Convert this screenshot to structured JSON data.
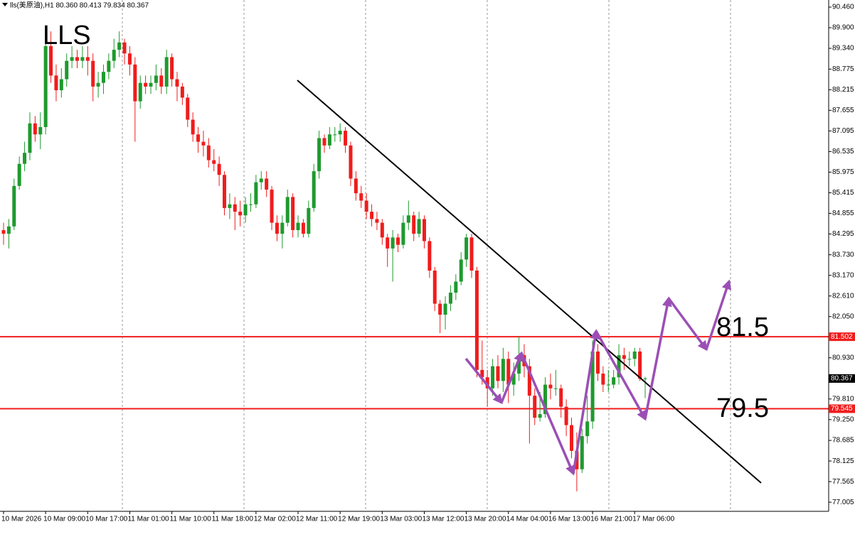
{
  "chart_data": {
    "type": "candlestick",
    "title": "lls(美原油),H1 80.360 80.413 79.834 80.367",
    "annotations": [
      "LLS",
      "81.5",
      "79.5"
    ],
    "up_color": "#1e9a2e",
    "down_color": "#f01c1c",
    "ylim": [
      76.757,
      90.653
    ],
    "yticks": [
      {
        "value": 90.46,
        "label": "90.460"
      },
      {
        "value": 89.9,
        "label": "89.900"
      },
      {
        "value": 89.34,
        "label": "89.340"
      },
      {
        "value": 88.775,
        "label": "88.775"
      },
      {
        "value": 88.215,
        "label": "88.215"
      },
      {
        "value": 87.655,
        "label": "87.655"
      },
      {
        "value": 87.095,
        "label": "87.095"
      },
      {
        "value": 86.535,
        "label": "86.535"
      },
      {
        "value": 85.975,
        "label": "85.975"
      },
      {
        "value": 85.415,
        "label": "85.415"
      },
      {
        "value": 84.855,
        "label": "84.855"
      },
      {
        "value": 84.295,
        "label": "84.295"
      },
      {
        "value": 83.73,
        "label": "83.730"
      },
      {
        "value": 83.17,
        "label": "83.170"
      },
      {
        "value": 82.61,
        "label": "82.610"
      },
      {
        "value": 82.05,
        "label": "82.050"
      },
      {
        "value": 80.93,
        "label": "80.930"
      },
      {
        "value": 79.81,
        "label": "79.810"
      },
      {
        "value": 79.25,
        "label": "79.250"
      },
      {
        "value": 78.685,
        "label": "78.685"
      },
      {
        "value": 78.125,
        "label": "78.125"
      },
      {
        "value": 77.565,
        "label": "77.565"
      },
      {
        "value": 77.005,
        "label": "77.005"
      }
    ],
    "levels": [
      {
        "value": 81.502,
        "label": "81.502",
        "color": "#f01c1c"
      },
      {
        "value": 79.545,
        "label": "79.545",
        "color": "#f01c1c"
      }
    ],
    "last_price": {
      "value": 80.367,
      "label": "80.367"
    },
    "categories": [
      "10 Mar 2026",
      null,
      null,
      null,
      null,
      null,
      null,
      null,
      "10 Mar 09:00",
      null,
      null,
      null,
      null,
      null,
      null,
      null,
      "10 Mar 17:00",
      null,
      null,
      null,
      null,
      null,
      null,
      null,
      "11 Mar 01:00",
      null,
      null,
      null,
      null,
      null,
      null,
      null,
      "11 Mar 10:00",
      null,
      null,
      null,
      null,
      null,
      null,
      null,
      "11 Mar 18:00",
      null,
      null,
      null,
      null,
      null,
      null,
      null,
      "12 Mar 02:00",
      null,
      null,
      null,
      null,
      null,
      null,
      null,
      "12 Mar 11:00",
      null,
      null,
      null,
      null,
      null,
      null,
      null,
      "12 Mar 19:00",
      null,
      null,
      null,
      null,
      null,
      null,
      null,
      "13 Mar 03:00",
      null,
      null,
      null,
      null,
      null,
      null,
      null,
      "13 Mar 12:00",
      null,
      null,
      null,
      null,
      null,
      null,
      null,
      "13 Mar 20:00",
      null,
      null,
      null,
      null,
      null,
      null,
      null,
      "14 Mar 04:00",
      null,
      null,
      null,
      null,
      null,
      null,
      null,
      "16 Mar 13:00",
      null,
      null,
      null,
      null,
      null,
      null,
      null,
      "16 Mar 21:00",
      null,
      null,
      null,
      null,
      null,
      null,
      null,
      "17 Mar 06:00",
      null,
      null
    ],
    "ohlc": [
      [
        84.4,
        84.6,
        84.0,
        84.3
      ],
      [
        84.3,
        84.7,
        83.9,
        84.5
      ],
      [
        84.5,
        85.8,
        84.4,
        85.6
      ],
      [
        85.6,
        86.4,
        85.5,
        86.2
      ],
      [
        86.2,
        86.8,
        86.0,
        86.5
      ],
      [
        86.5,
        87.6,
        86.3,
        87.3
      ],
      [
        87.3,
        87.5,
        86.8,
        87.0
      ],
      [
        87.0,
        87.6,
        86.6,
        87.2
      ],
      [
        87.2,
        89.7,
        87.0,
        89.4
      ],
      [
        89.4,
        89.8,
        88.4,
        88.6
      ],
      [
        88.6,
        88.9,
        87.9,
        88.2
      ],
      [
        88.2,
        88.8,
        88.0,
        88.5
      ],
      [
        88.5,
        89.2,
        88.3,
        89.0
      ],
      [
        89.0,
        89.4,
        88.8,
        89.1
      ],
      [
        89.1,
        89.3,
        88.8,
        89.0
      ],
      [
        89.0,
        89.4,
        88.8,
        89.1
      ],
      [
        89.1,
        89.4,
        88.6,
        89.0
      ],
      [
        89.0,
        89.2,
        87.9,
        88.3
      ],
      [
        88.3,
        88.7,
        88.0,
        88.4
      ],
      [
        88.4,
        88.9,
        88.1,
        88.7
      ],
      [
        88.7,
        89.2,
        88.5,
        89.0
      ],
      [
        89.0,
        89.6,
        88.8,
        89.3
      ],
      [
        89.3,
        89.8,
        89.1,
        89.5
      ],
      [
        89.5,
        89.6,
        88.9,
        89.2
      ],
      [
        89.2,
        89.4,
        88.6,
        88.9
      ],
      [
        88.9,
        89.1,
        86.8,
        87.9
      ],
      [
        87.9,
        88.6,
        87.7,
        88.4
      ],
      [
        88.4,
        88.6,
        88.1,
        88.3
      ],
      [
        88.3,
        88.6,
        88.1,
        88.4
      ],
      [
        88.4,
        88.9,
        88.2,
        88.6
      ],
      [
        88.6,
        88.8,
        88.1,
        88.3
      ],
      [
        88.3,
        89.3,
        88.1,
        89.1
      ],
      [
        89.1,
        89.2,
        88.3,
        88.5
      ],
      [
        88.5,
        88.7,
        87.9,
        88.3
      ],
      [
        88.3,
        88.4,
        87.8,
        88.0
      ],
      [
        88.0,
        88.1,
        87.2,
        87.4
      ],
      [
        87.4,
        87.6,
        86.8,
        87.0
      ],
      [
        87.0,
        87.2,
        86.5,
        86.8
      ],
      [
        86.8,
        87.1,
        86.4,
        86.7
      ],
      [
        86.7,
        86.9,
        86.1,
        86.3
      ],
      [
        86.3,
        86.6,
        86.0,
        86.2
      ],
      [
        86.2,
        86.4,
        85.6,
        85.9
      ],
      [
        85.9,
        86.0,
        84.8,
        85.0
      ],
      [
        85.0,
        85.4,
        84.7,
        85.1
      ],
      [
        85.1,
        85.3,
        84.4,
        84.9
      ],
      [
        84.9,
        85.2,
        84.5,
        84.8
      ],
      [
        84.8,
        85.3,
        84.6,
        85.1
      ],
      [
        85.1,
        85.4,
        84.9,
        85.1
      ],
      [
        85.1,
        85.9,
        85.0,
        85.7
      ],
      [
        85.7,
        86.0,
        85.5,
        85.8
      ],
      [
        85.8,
        86.0,
        85.3,
        85.5
      ],
      [
        85.5,
        85.6,
        84.4,
        84.6
      ],
      [
        84.6,
        84.8,
        84.1,
        84.3
      ],
      [
        84.3,
        84.8,
        83.9,
        84.6
      ],
      [
        84.6,
        85.5,
        84.5,
        85.3
      ],
      [
        85.3,
        85.4,
        84.2,
        84.4
      ],
      [
        84.4,
        84.8,
        84.2,
        84.6
      ],
      [
        84.6,
        84.7,
        84.2,
        84.3
      ],
      [
        84.3,
        85.2,
        84.2,
        85.0
      ],
      [
        85.0,
        86.2,
        84.9,
        86.0
      ],
      [
        86.0,
        87.1,
        85.8,
        86.9
      ],
      [
        86.9,
        87.0,
        86.5,
        86.7
      ],
      [
        86.7,
        87.2,
        86.6,
        87.0
      ],
      [
        87.0,
        87.2,
        86.8,
        87.0
      ],
      [
        87.0,
        87.3,
        86.8,
        87.1
      ],
      [
        87.1,
        87.2,
        86.5,
        86.7
      ],
      [
        86.7,
        86.8,
        85.6,
        85.8
      ],
      [
        85.8,
        86.0,
        85.2,
        85.4
      ],
      [
        85.4,
        85.6,
        85.0,
        85.2
      ],
      [
        85.2,
        85.4,
        84.7,
        84.9
      ],
      [
        84.9,
        85.1,
        84.5,
        84.7
      ],
      [
        84.7,
        84.9,
        84.4,
        84.6
      ],
      [
        84.6,
        84.7,
        84.0,
        84.2
      ],
      [
        84.2,
        84.3,
        83.4,
        83.9
      ],
      [
        83.9,
        84.4,
        83.0,
        84.2
      ],
      [
        84.2,
        84.3,
        83.8,
        84.0
      ],
      [
        84.0,
        84.8,
        83.9,
        84.6
      ],
      [
        84.6,
        85.2,
        84.4,
        84.8
      ],
      [
        84.8,
        84.9,
        84.1,
        84.3
      ],
      [
        84.3,
        84.9,
        84.2,
        84.7
      ],
      [
        84.7,
        84.8,
        83.9,
        84.1
      ],
      [
        84.1,
        84.2,
        83.1,
        83.3
      ],
      [
        83.3,
        83.4,
        82.2,
        82.4
      ],
      [
        82.4,
        82.5,
        81.6,
        82.1
      ],
      [
        82.1,
        82.6,
        81.7,
        82.4
      ],
      [
        82.4,
        82.9,
        82.2,
        82.7
      ],
      [
        82.7,
        83.2,
        82.5,
        83.0
      ],
      [
        83.0,
        83.8,
        82.9,
        83.6
      ],
      [
        83.6,
        84.3,
        83.4,
        84.2
      ],
      [
        84.2,
        84.3,
        83.1,
        83.3
      ],
      [
        83.3,
        83.4,
        80.4,
        80.6
      ],
      [
        80.6,
        81.4,
        80.2,
        80.4
      ],
      [
        80.4,
        80.6,
        79.6,
        80.1
      ],
      [
        80.1,
        80.9,
        79.9,
        80.7
      ],
      [
        80.7,
        81.0,
        80.1,
        80.3
      ],
      [
        80.3,
        81.2,
        80.0,
        80.9
      ],
      [
        80.9,
        81.1,
        79.7,
        80.2
      ],
      [
        80.2,
        80.8,
        79.9,
        80.5
      ],
      [
        80.5,
        81.5,
        80.3,
        81.0
      ],
      [
        81.0,
        81.3,
        80.4,
        80.7
      ],
      [
        80.7,
        80.9,
        78.6,
        79.9
      ],
      [
        79.9,
        80.1,
        79.1,
        79.3
      ],
      [
        79.3,
        80.0,
        79.2,
        79.4
      ],
      [
        79.4,
        80.4,
        79.3,
        80.2
      ],
      [
        80.2,
        80.5,
        79.8,
        80.1
      ],
      [
        80.1,
        80.6,
        79.9,
        80.1
      ],
      [
        80.1,
        80.2,
        79.3,
        79.6
      ],
      [
        79.6,
        79.8,
        78.8,
        79.1
      ],
      [
        79.1,
        79.3,
        78.2,
        78.4
      ],
      [
        78.4,
        78.9,
        77.3,
        77.9
      ],
      [
        77.9,
        79.0,
        77.8,
        78.8
      ],
      [
        78.8,
        79.9,
        78.6,
        79.2
      ],
      [
        79.2,
        81.4,
        79.0,
        81.1
      ],
      [
        81.1,
        81.3,
        80.3,
        80.5
      ],
      [
        80.5,
        80.7,
        80.0,
        80.2
      ],
      [
        80.2,
        80.6,
        80.0,
        80.2
      ],
      [
        80.2,
        80.6,
        80.1,
        80.4
      ],
      [
        80.4,
        81.3,
        80.2,
        81.0
      ],
      [
        81.0,
        81.2,
        80.6,
        80.9
      ],
      [
        80.9,
        81.1,
        80.7,
        80.9
      ],
      [
        80.9,
        81.2,
        80.7,
        81.1
      ],
      [
        81.1,
        81.2,
        80.3,
        80.36
      ],
      [
        80.36,
        80.413,
        79.834,
        80.367
      ]
    ]
  }
}
